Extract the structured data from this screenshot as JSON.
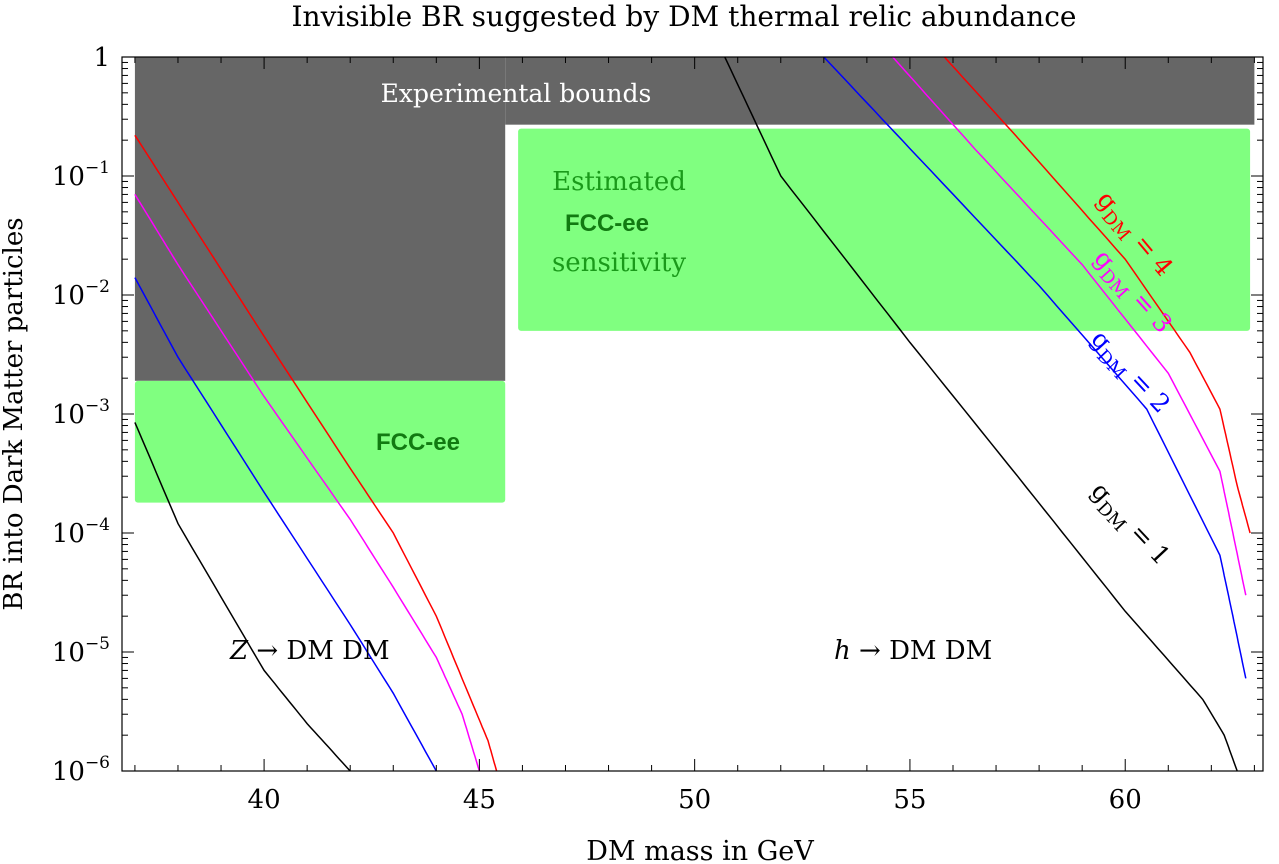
{
  "chart_data": {
    "type": "line",
    "title": "Invisible BR suggested by DM thermal relic abundance",
    "xlabel": "DM mass in GeV",
    "ylabel": "BR into Dark Matter particles",
    "xlim": [
      36.7,
      63.2
    ],
    "ylim": [
      1e-06,
      1
    ],
    "yscale": "log",
    "xticks": [
      {
        "value": 40,
        "label": "40"
      },
      {
        "value": 45,
        "label": "45"
      },
      {
        "value": 50,
        "label": "50"
      },
      {
        "value": 55,
        "label": "55"
      },
      {
        "value": 60,
        "label": "60"
      }
    ],
    "yticks": [
      {
        "exp": 0,
        "base": "1",
        "sup": ""
      },
      {
        "exp": -1,
        "base": "10",
        "sup": "−1"
      },
      {
        "exp": -2,
        "base": "10",
        "sup": "−2"
      },
      {
        "exp": -3,
        "base": "10",
        "sup": "−3"
      },
      {
        "exp": -4,
        "base": "10",
        "sup": "−4"
      },
      {
        "exp": -5,
        "base": "10",
        "sup": "−5"
      },
      {
        "exp": -6,
        "base": "10",
        "sup": "−6"
      }
    ],
    "regions": [
      {
        "name": "Experimental bounds",
        "x": [
          37,
          45.6
        ],
        "y": [
          0.0019,
          1
        ],
        "color": "#666666"
      },
      {
        "name": "Experimental bounds",
        "x": [
          45.6,
          63
        ],
        "y": [
          0.27,
          1
        ],
        "color": "#666666"
      },
      {
        "name": "FCC-ee (Z)",
        "x": [
          37,
          45.6
        ],
        "y": [
          0.00018,
          0.0019
        ],
        "color": "#80ff80"
      },
      {
        "name": "FCC-ee (h)",
        "x": [
          45.9,
          62.9
        ],
        "y": [
          0.005,
          0.25
        ],
        "color": "#80ff80"
      }
    ],
    "series": [
      {
        "name": "Z, gDM = 1",
        "color": "#000000",
        "points": [
          [
            37,
            0.00085
          ],
          [
            38,
            0.00012
          ],
          [
            40,
            7e-06
          ],
          [
            41,
            2.5e-06
          ],
          [
            42,
            1e-06
          ]
        ]
      },
      {
        "name": "Z, gDM = 2",
        "color": "#0000ff",
        "points": [
          [
            37,
            0.014
          ],
          [
            38,
            0.003
          ],
          [
            40,
            0.00022
          ],
          [
            42,
            1.7e-05
          ],
          [
            43,
            4.5e-06
          ],
          [
            44,
            1e-06
          ]
        ]
      },
      {
        "name": "Z, gDM = 3",
        "color": "#ff00ff",
        "points": [
          [
            37,
            0.07
          ],
          [
            38,
            0.018
          ],
          [
            40,
            0.0014
          ],
          [
            42,
            0.00013
          ],
          [
            43,
            3.5e-05
          ],
          [
            44,
            9e-06
          ],
          [
            44.6,
            3e-06
          ],
          [
            45,
            1e-06
          ]
        ]
      },
      {
        "name": "Z, gDM = 4",
        "color": "#ff0000",
        "points": [
          [
            37,
            0.22
          ],
          [
            38,
            0.06
          ],
          [
            40,
            0.0045
          ],
          [
            42,
            0.00035
          ],
          [
            43,
            0.0001
          ],
          [
            44,
            2e-05
          ],
          [
            44.8,
            4e-06
          ],
          [
            45.2,
            1.8e-06
          ],
          [
            45.4,
            1e-06
          ]
        ]
      },
      {
        "name": "h, gDM = 1",
        "color": "#000000",
        "points": [
          [
            50.7,
            1
          ],
          [
            52,
            0.1
          ],
          [
            55,
            0.004
          ],
          [
            57.5,
            0.0003
          ],
          [
            60,
            2.2e-05
          ],
          [
            61.8,
            4e-06
          ],
          [
            62.3,
            2e-06
          ],
          [
            62.6,
            1e-06
          ]
        ]
      },
      {
        "name": "h, gDM = 2",
        "color": "#0000ff",
        "points": [
          [
            53,
            1
          ],
          [
            55,
            0.17
          ],
          [
            58,
            0.012
          ],
          [
            60.5,
            0.0011
          ],
          [
            62.2,
            6.5e-05
          ],
          [
            62.5,
            2e-05
          ],
          [
            62.8,
            6e-06
          ]
        ]
      },
      {
        "name": "h, gDM = 3",
        "color": "#ff00ff",
        "points": [
          [
            54.6,
            1
          ],
          [
            56.5,
            0.17
          ],
          [
            59,
            0.018
          ],
          [
            61,
            0.0022
          ],
          [
            62.2,
            0.00033
          ],
          [
            62.5,
            0.0001
          ],
          [
            62.8,
            3e-05
          ]
        ]
      },
      {
        "name": "h, gDM = 4",
        "color": "#ff0000",
        "points": [
          [
            55.8,
            1
          ],
          [
            57.5,
            0.21
          ],
          [
            60,
            0.02
          ],
          [
            61.5,
            0.0033
          ],
          [
            62.2,
            0.0011
          ],
          [
            62.6,
            0.00025
          ],
          [
            62.9,
            0.0001
          ]
        ]
      }
    ],
    "annotations": {
      "exp_bounds": "Experimental bounds",
      "estimated": "Estimated",
      "fcc_bold": "FCC-ee",
      "sensitivity": "sensitivity",
      "fcc_z": "FCC-ee",
      "z_decay": {
        "sym": "Z",
        "text": " → DM DM"
      },
      "h_decay": {
        "sym": "h",
        "text": " → DM DM"
      },
      "g_labels": [
        {
          "g": "g",
          "sub": "DM",
          "val": " = 1",
          "color": "#000000"
        },
        {
          "g": "g",
          "sub": "DM",
          "val": " = 2",
          "color": "#0000ff"
        },
        {
          "g": "g",
          "sub": "DM",
          "val": " = 3",
          "color": "#ff00ff"
        },
        {
          "g": "g",
          "sub": "DM",
          "val": " = 4",
          "color": "#ff0000"
        }
      ]
    }
  }
}
